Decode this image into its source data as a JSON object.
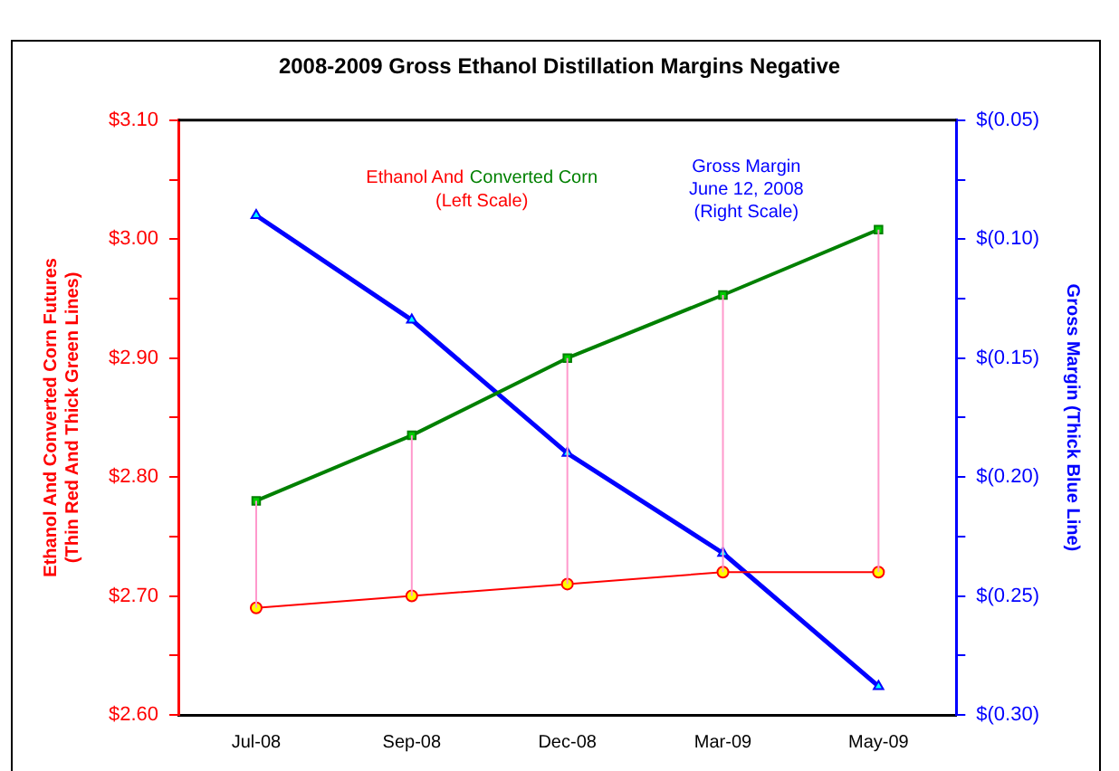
{
  "chart_data": {
    "type": "line",
    "title": "2008-2009 Gross Ethanol Distillation Margins Negative",
    "ylabel": "Ethanol And Converted Corn Futures\n(Thin Red And Thick Green Lines)",
    "y2label": "Gross Margin (Thick Blue Line)",
    "categories": [
      "Jul-08",
      "Sep-08",
      "Dec-08",
      "Mar-09",
      "May-09"
    ],
    "series": [
      {
        "color": "#ff0000",
        "values": [
          2.69,
          2.7,
          2.71,
          2.72,
          2.72
        ],
        "marker": "circle",
        "errors": [
          [
            2.69,
            2.78
          ],
          [
            2.7,
            2.835
          ],
          [
            2.71,
            2.9
          ],
          [
            2.72,
            2.953
          ],
          [
            2.72,
            3.008
          ]
        ]
      },
      {
        "color": "#008000",
        "values": [
          2.78,
          2.835,
          2.9,
          2.953,
          3.008
        ],
        "marker": "square"
      },
      {
        "color": "#0000ff",
        "values": [
          -0.09,
          -0.134,
          -0.19,
          -0.232,
          -0.288
        ],
        "marker": "triangle",
        "axis": "y2"
      }
    ],
    "ylim": [
      2.6,
      3.1
    ],
    "yticks": [
      {
        "value": 2.6,
        "label": "$2.60"
      },
      {
        "value": 2.65,
        "label": null
      },
      {
        "value": 2.7,
        "label": "$2.70"
      },
      {
        "value": 2.75,
        "label": null
      },
      {
        "value": 2.8,
        "label": "$2.80"
      },
      {
        "value": 2.85,
        "label": null
      },
      {
        "value": 2.9,
        "label": "$2.90"
      },
      {
        "value": 2.95,
        "label": null
      },
      {
        "value": 3.0,
        "label": "$3.00"
      },
      {
        "value": 3.05,
        "label": null
      },
      {
        "value": 3.1,
        "label": "$3.10"
      }
    ],
    "y2lim": [
      -0.3,
      -0.05
    ],
    "y2ticks": [
      {
        "value": -0.3,
        "label": "$(0.30)"
      },
      {
        "value": -0.275,
        "label": null
      },
      {
        "value": -0.25,
        "label": "$(0.25)"
      },
      {
        "value": -0.225,
        "label": null
      },
      {
        "value": -0.2,
        "label": "$(0.20)"
      },
      {
        "value": -0.175,
        "label": null
      },
      {
        "value": -0.15,
        "label": "$(0.15)"
      },
      {
        "value": -0.125,
        "label": null
      },
      {
        "value": -0.1,
        "label": "$(0.10)"
      },
      {
        "value": -0.075,
        "label": null
      },
      {
        "value": -0.05,
        "label": "$(0.05)"
      }
    ],
    "annotations": [
      "Ethanol And",
      "Converted Corn",
      "(Left Scale)",
      "Gross Margin",
      "June 12, 2008",
      "(Right Scale)"
    ],
    "grid": false,
    "legend": false,
    "line_style": "solid"
  }
}
